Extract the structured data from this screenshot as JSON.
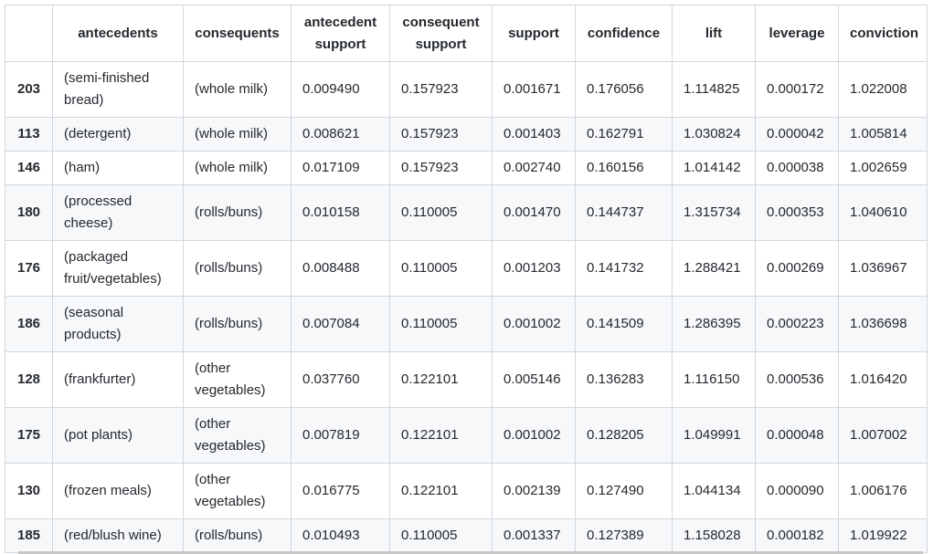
{
  "table": {
    "columns": [
      {
        "key": "index",
        "label": ""
      },
      {
        "key": "antecedents",
        "label": "antecedents"
      },
      {
        "key": "consequents",
        "label": "consequents"
      },
      {
        "key": "antecedent_support",
        "label": "antecedent support"
      },
      {
        "key": "consequent_support",
        "label": "consequent support"
      },
      {
        "key": "support",
        "label": "support"
      },
      {
        "key": "confidence",
        "label": "confidence"
      },
      {
        "key": "lift",
        "label": "lift"
      },
      {
        "key": "leverage",
        "label": "leverage"
      },
      {
        "key": "conviction",
        "label": "conviction"
      }
    ],
    "rows": [
      {
        "index": "203",
        "antecedents": "(semi-finished bread)",
        "consequents": "(whole milk)",
        "antecedent_support": "0.009490",
        "consequent_support": "0.157923",
        "support": "0.001671",
        "confidence": "0.176056",
        "lift": "1.114825",
        "leverage": "0.000172",
        "conviction": "1.022008"
      },
      {
        "index": "113",
        "antecedents": "(detergent)",
        "consequents": "(whole milk)",
        "antecedent_support": "0.008621",
        "consequent_support": "0.157923",
        "support": "0.001403",
        "confidence": "0.162791",
        "lift": "1.030824",
        "leverage": "0.000042",
        "conviction": "1.005814"
      },
      {
        "index": "146",
        "antecedents": "(ham)",
        "consequents": "(whole milk)",
        "antecedent_support": "0.017109",
        "consequent_support": "0.157923",
        "support": "0.002740",
        "confidence": "0.160156",
        "lift": "1.014142",
        "leverage": "0.000038",
        "conviction": "1.002659"
      },
      {
        "index": "180",
        "antecedents": "(processed cheese)",
        "consequents": "(rolls/buns)",
        "antecedent_support": "0.010158",
        "consequent_support": "0.110005",
        "support": "0.001470",
        "confidence": "0.144737",
        "lift": "1.315734",
        "leverage": "0.000353",
        "conviction": "1.040610"
      },
      {
        "index": "176",
        "antecedents": "(packaged fruit/vegetables)",
        "consequents": "(rolls/buns)",
        "antecedent_support": "0.008488",
        "consequent_support": "0.110005",
        "support": "0.001203",
        "confidence": "0.141732",
        "lift": "1.288421",
        "leverage": "0.000269",
        "conviction": "1.036967"
      },
      {
        "index": "186",
        "antecedents": "(seasonal products)",
        "consequents": "(rolls/buns)",
        "antecedent_support": "0.007084",
        "consequent_support": "0.110005",
        "support": "0.001002",
        "confidence": "0.141509",
        "lift": "1.286395",
        "leverage": "0.000223",
        "conviction": "1.036698"
      },
      {
        "index": "128",
        "antecedents": "(frankfurter)",
        "consequents": "(other vegetables)",
        "antecedent_support": "0.037760",
        "consequent_support": "0.122101",
        "support": "0.005146",
        "confidence": "0.136283",
        "lift": "1.116150",
        "leverage": "0.000536",
        "conviction": "1.016420"
      },
      {
        "index": "175",
        "antecedents": "(pot plants)",
        "consequents": "(other vegetables)",
        "antecedent_support": "0.007819",
        "consequent_support": "0.122101",
        "support": "0.001002",
        "confidence": "0.128205",
        "lift": "1.049991",
        "leverage": "0.000048",
        "conviction": "1.007002"
      },
      {
        "index": "130",
        "antecedents": "(frozen meals)",
        "consequents": "(other vegetables)",
        "antecedent_support": "0.016775",
        "consequent_support": "0.122101",
        "support": "0.002139",
        "confidence": "0.127490",
        "lift": "1.044134",
        "leverage": "0.000090",
        "conviction": "1.006176"
      },
      {
        "index": "185",
        "antecedents": "(red/blush wine)",
        "consequents": "(rolls/buns)",
        "antecedent_support": "0.010493",
        "consequent_support": "0.110005",
        "support": "0.001337",
        "confidence": "0.127389",
        "lift": "1.158028",
        "leverage": "0.000182",
        "conviction": "1.019922"
      }
    ]
  }
}
